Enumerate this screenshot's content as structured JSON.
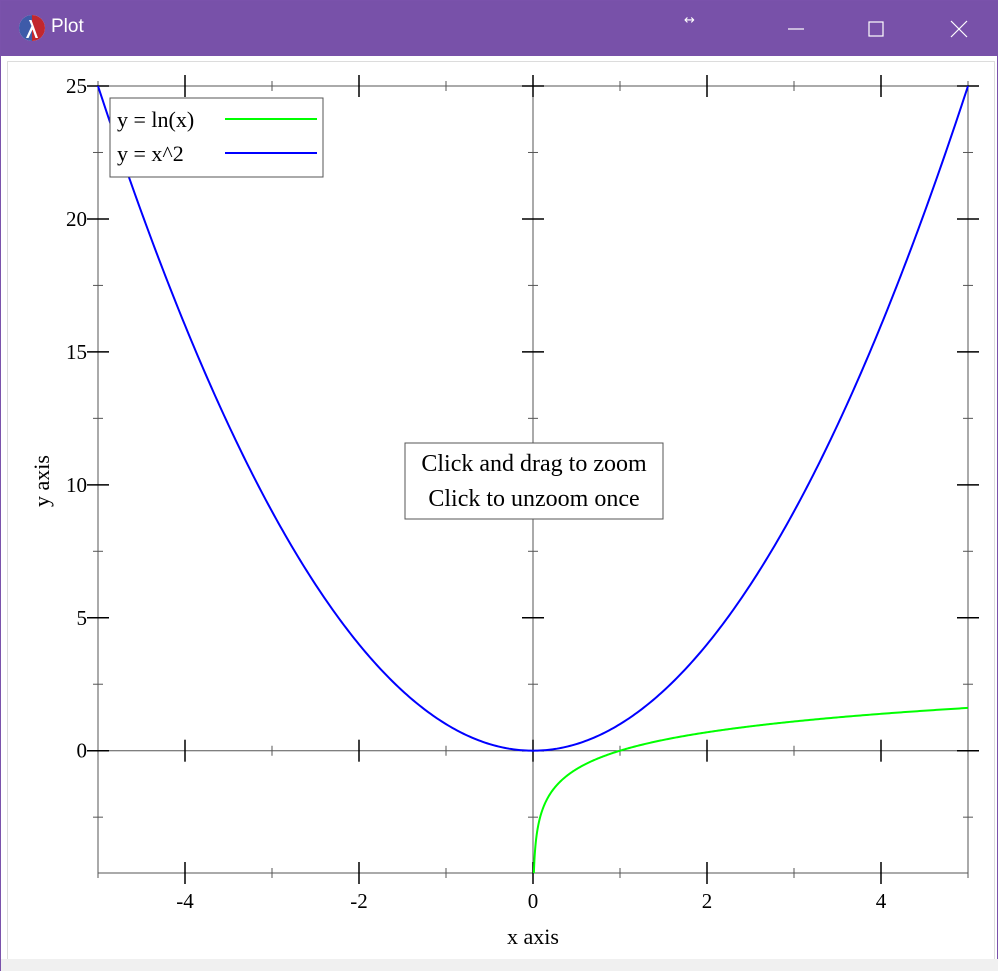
{
  "window": {
    "title": "Plot",
    "resize_indicator": "↔",
    "title_bar_color": "#7851a9",
    "controls": [
      "minimize-icon",
      "maximize-icon",
      "close-icon"
    ]
  },
  "hint": {
    "line1": "Click and drag to zoom",
    "line2": "Click to unzoom once"
  },
  "chart_data": {
    "type": "line",
    "title": "",
    "xlabel": "x axis",
    "ylabel": "y axis",
    "xlim": [
      -5,
      5
    ],
    "ylim": [
      -4.6,
      25
    ],
    "x_ticks": [
      -4,
      -2,
      0,
      2,
      4
    ],
    "x_tick_labels": [
      "-4",
      "-2",
      "0",
      "2",
      "4"
    ],
    "y_ticks": [
      0,
      5,
      10,
      15,
      20,
      25
    ],
    "y_tick_labels": [
      "0",
      "5",
      "10",
      "15",
      "20",
      "25"
    ],
    "grid": false,
    "legend_position": "top-left",
    "series": [
      {
        "name": "y = ln(x)",
        "color": "#00ff00",
        "function": "ln",
        "x": [
          0.01,
          0.05,
          0.1,
          0.25,
          0.5,
          1,
          2,
          3,
          4,
          5
        ],
        "y": [
          -4.61,
          -3.0,
          -2.3,
          -1.39,
          -0.69,
          0,
          0.69,
          1.1,
          1.39,
          1.61
        ]
      },
      {
        "name": "y = x^2",
        "color": "#0000ff",
        "function": "square",
        "x": [
          -5,
          -4,
          -3,
          -2,
          -1,
          0,
          1,
          2,
          3,
          4,
          5
        ],
        "y": [
          25,
          16,
          9,
          4,
          1,
          0,
          1,
          4,
          9,
          16,
          25
        ]
      }
    ]
  }
}
